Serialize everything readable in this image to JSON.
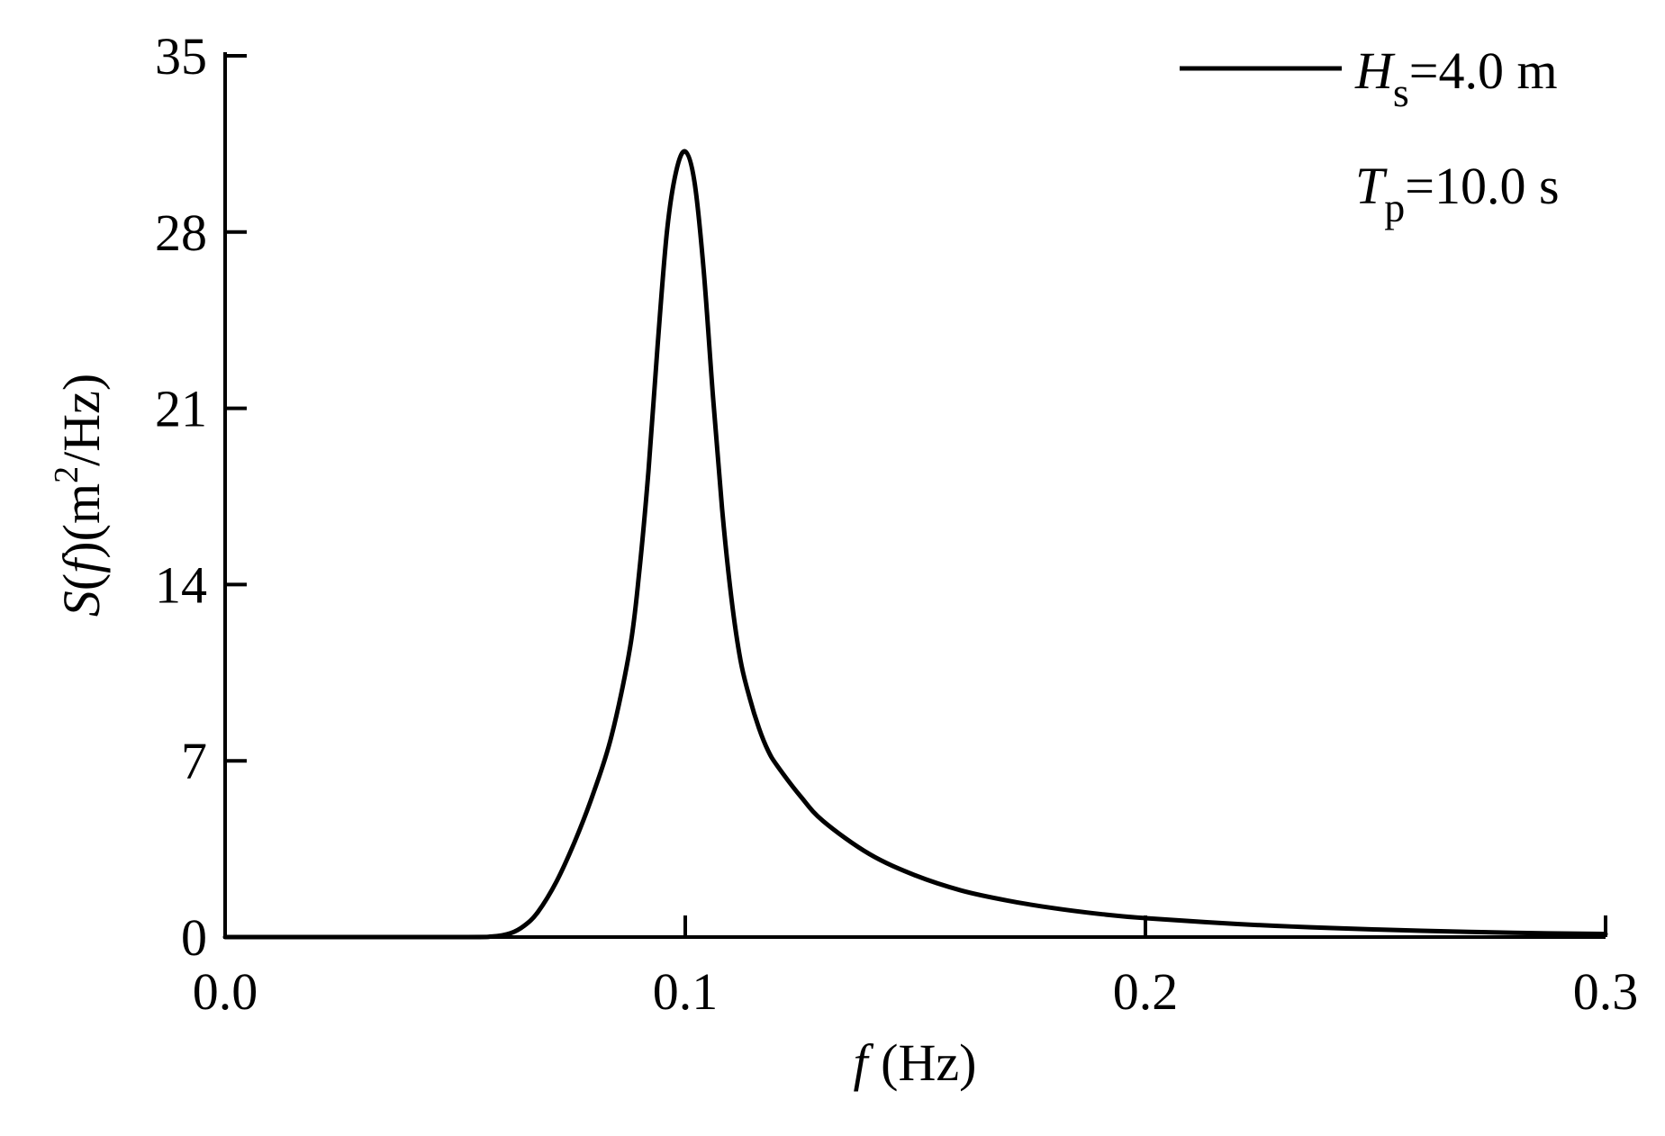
{
  "chart_data": {
    "type": "line",
    "xlabel": {
      "var": "f",
      "unit": " (Hz)"
    },
    "ylabel": {
      "var_s": "S",
      "open": "(",
      "var_f": "f",
      "close": ")",
      "unit_pre": "(m",
      "unit_sup": "2",
      "unit_post": "/Hz)"
    },
    "xlim": [
      0.0,
      0.3
    ],
    "ylim": [
      0,
      35
    ],
    "xticks": [
      "0.0",
      "0.1",
      "0.2",
      "0.3"
    ],
    "yticks": [
      "0",
      "7",
      "14",
      "21",
      "28",
      "35"
    ],
    "grid": false,
    "legend_position": "top-right",
    "legend": {
      "line1": {
        "var": "H",
        "sub": "s",
        "text": "=4.0 m"
      },
      "line2": {
        "var": "T",
        "sub": "p",
        "text": "=10.0 s"
      }
    },
    "series": [
      {
        "color": "#000000",
        "x": [
          0.0,
          0.05,
          0.058,
          0.062,
          0.065,
          0.068,
          0.072,
          0.076,
          0.08,
          0.084,
          0.088,
          0.09,
          0.092,
          0.094,
          0.096,
          0.098,
          0.1,
          0.102,
          0.104,
          0.106,
          0.108,
          0.11,
          0.112,
          0.114,
          0.116,
          0.118,
          0.12,
          0.125,
          0.13,
          0.14,
          0.15,
          0.16,
          0.17,
          0.18,
          0.19,
          0.2,
          0.22,
          0.24,
          0.26,
          0.28,
          0.3
        ],
        "y": [
          0.0,
          0.0,
          0.02,
          0.15,
          0.45,
          1.0,
          2.2,
          3.8,
          5.7,
          8.0,
          11.5,
          14.5,
          18.5,
          23.5,
          28.0,
          30.4,
          31.2,
          30.0,
          26.5,
          21.5,
          17.0,
          13.5,
          11.0,
          9.5,
          8.3,
          7.4,
          6.8,
          5.6,
          4.6,
          3.3,
          2.45,
          1.85,
          1.45,
          1.15,
          0.92,
          0.75,
          0.52,
          0.36,
          0.25,
          0.17,
          0.12
        ]
      }
    ]
  }
}
